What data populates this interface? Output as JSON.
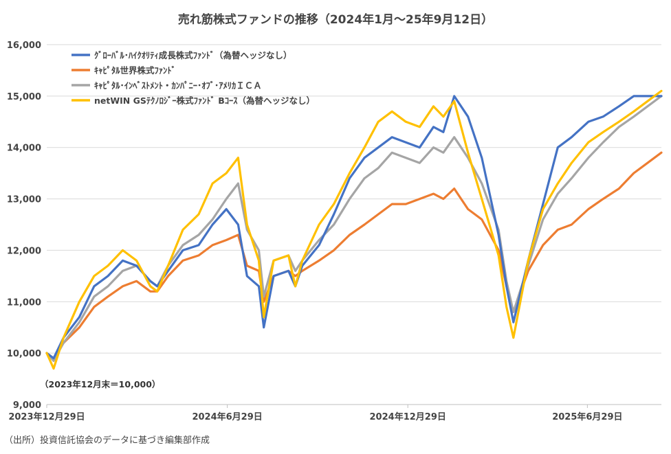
{
  "chart_data": {
    "type": "line",
    "title": "売れ筋株式ファンドの推移（2024年1月～25年9月12日）",
    "note": "（2023年12月末＝10,000）",
    "source": "（出所）投資信託協会のデータに基づき編集部作成",
    "ylim": [
      9000,
      16000
    ],
    "yticks": [
      {
        "value": 9000,
        "label": "9,000"
      },
      {
        "value": 10000,
        "label": "10,000"
      },
      {
        "value": 11000,
        "label": "11,000"
      },
      {
        "value": 12000,
        "label": "12,000"
      },
      {
        "value": 13000,
        "label": "13,000"
      },
      {
        "value": 14000,
        "label": "14,000"
      },
      {
        "value": 15000,
        "label": "15,000"
      },
      {
        "value": 16000,
        "label": "16,000"
      }
    ],
    "xlim": [
      "2023-12-29",
      "2025-09-12"
    ],
    "xticks": [
      {
        "value": "2023-12-29",
        "label": "2023年12月29日"
      },
      {
        "value": "2024-06-29",
        "label": "2024年6月29日"
      },
      {
        "value": "2024-12-29",
        "label": "2024年12月29日"
      },
      {
        "value": "2025-06-29",
        "label": "2025年6月29日"
      }
    ],
    "grid": true,
    "legend_position": "top-left",
    "series": [
      {
        "name": "ｸﾞﾛｰﾊﾞﾙ･ﾊｲｸｵﾘﾃｨ成長株式ﾌｧﾝﾄﾞ（為替ヘッジなし）",
        "color": "#4472C4",
        "x": [
          "2023-12-29",
          "2024-01-05",
          "2024-01-15",
          "2024-01-31",
          "2024-02-15",
          "2024-02-29",
          "2024-03-15",
          "2024-03-29",
          "2024-04-12",
          "2024-04-19",
          "2024-04-30",
          "2024-05-15",
          "2024-05-31",
          "2024-06-14",
          "2024-06-28",
          "2024-07-10",
          "2024-07-19",
          "2024-07-31",
          "2024-08-05",
          "2024-08-15",
          "2024-08-30",
          "2024-09-06",
          "2024-09-13",
          "2024-09-30",
          "2024-10-15",
          "2024-10-31",
          "2024-11-15",
          "2024-11-29",
          "2024-12-13",
          "2024-12-27",
          "2025-01-10",
          "2025-01-24",
          "2025-02-03",
          "2025-02-14",
          "2025-02-28",
          "2025-03-14",
          "2025-03-31",
          "2025-04-08",
          "2025-04-15",
          "2025-04-30",
          "2025-05-15",
          "2025-05-30",
          "2025-06-13",
          "2025-06-30",
          "2025-07-15",
          "2025-07-31",
          "2025-08-15",
          "2025-08-29",
          "2025-09-12"
        ],
        "values": [
          10000,
          9900,
          10300,
          10700,
          11300,
          11500,
          11800,
          11700,
          11400,
          11300,
          11600,
          12000,
          12100,
          12500,
          12800,
          12500,
          11500,
          11300,
          10500,
          11500,
          11600,
          11300,
          11700,
          12100,
          12700,
          13400,
          13800,
          14000,
          14200,
          14100,
          14000,
          14400,
          14300,
          15000,
          14600,
          13800,
          12300,
          11300,
          10600,
          11800,
          12900,
          14000,
          14200,
          14500,
          14600,
          14800,
          15000,
          15000,
          15000
        ]
      },
      {
        "name": "ｷｬﾋﾟﾀﾙ世界株式ﾌｧﾝﾄﾞ",
        "color": "#ED7D31",
        "x": [
          "2023-12-29",
          "2024-01-05",
          "2024-01-15",
          "2024-01-31",
          "2024-02-15",
          "2024-02-29",
          "2024-03-15",
          "2024-03-29",
          "2024-04-12",
          "2024-04-19",
          "2024-04-30",
          "2024-05-15",
          "2024-05-31",
          "2024-06-14",
          "2024-06-28",
          "2024-07-10",
          "2024-07-19",
          "2024-07-31",
          "2024-08-05",
          "2024-08-15",
          "2024-08-30",
          "2024-09-06",
          "2024-09-13",
          "2024-09-30",
          "2024-10-15",
          "2024-10-31",
          "2024-11-15",
          "2024-11-29",
          "2024-12-13",
          "2024-12-27",
          "2025-01-10",
          "2025-01-24",
          "2025-02-03",
          "2025-02-14",
          "2025-02-28",
          "2025-03-14",
          "2025-03-31",
          "2025-04-08",
          "2025-04-15",
          "2025-04-30",
          "2025-05-15",
          "2025-05-30",
          "2025-06-13",
          "2025-06-30",
          "2025-07-15",
          "2025-07-31",
          "2025-08-15",
          "2025-08-29",
          "2025-09-12"
        ],
        "values": [
          10000,
          9900,
          10200,
          10500,
          10900,
          11100,
          11300,
          11400,
          11200,
          11200,
          11500,
          11800,
          11900,
          12100,
          12200,
          12300,
          11700,
          11600,
          11000,
          11500,
          11600,
          11500,
          11600,
          11800,
          12000,
          12300,
          12500,
          12700,
          12900,
          12900,
          13000,
          13100,
          13000,
          13200,
          12800,
          12600,
          12000,
          11300,
          10800,
          11600,
          12100,
          12400,
          12500,
          12800,
          13000,
          13200,
          13500,
          13700,
          13900
        ]
      },
      {
        "name": "ｷｬﾋﾟﾀﾙ･ｲﾝﾍﾞｽﾄﾒﾝﾄ・ｶﾝﾊﾟﾆｰ･ｵﾌﾞ･ｱﾒﾘｶＩＣＡ",
        "color": "#A5A5A5",
        "x": [
          "2023-12-29",
          "2024-01-05",
          "2024-01-15",
          "2024-01-31",
          "2024-02-15",
          "2024-02-29",
          "2024-03-15",
          "2024-03-29",
          "2024-04-12",
          "2024-04-19",
          "2024-04-30",
          "2024-05-15",
          "2024-05-31",
          "2024-06-14",
          "2024-06-28",
          "2024-07-10",
          "2024-07-19",
          "2024-07-31",
          "2024-08-05",
          "2024-08-15",
          "2024-08-30",
          "2024-09-06",
          "2024-09-13",
          "2024-09-30",
          "2024-10-15",
          "2024-10-31",
          "2024-11-15",
          "2024-11-29",
          "2024-12-13",
          "2024-12-27",
          "2025-01-10",
          "2025-01-24",
          "2025-02-03",
          "2025-02-14",
          "2025-02-28",
          "2025-03-14",
          "2025-03-31",
          "2025-04-08",
          "2025-04-15",
          "2025-04-30",
          "2025-05-15",
          "2025-05-30",
          "2025-06-13",
          "2025-06-30",
          "2025-07-15",
          "2025-07-31",
          "2025-08-15",
          "2025-08-29",
          "2025-09-12"
        ],
        "values": [
          10000,
          9850,
          10200,
          10600,
          11100,
          11300,
          11600,
          11700,
          11400,
          11300,
          11700,
          12100,
          12300,
          12600,
          13000,
          13300,
          12400,
          12000,
          11100,
          11800,
          11900,
          11600,
          11800,
          12200,
          12500,
          13000,
          13400,
          13600,
          13900,
          13800,
          13700,
          14000,
          13900,
          14200,
          13800,
          13300,
          12400,
          11400,
          10800,
          11700,
          12600,
          13100,
          13400,
          13800,
          14100,
          14400,
          14600,
          14800,
          15000
        ]
      },
      {
        "name": "netWIN GSﾃｸﾉﾛｼﾞｰ株式ﾌｧﾝﾄﾞ Bｺｰｽ（為替ヘッジなし）",
        "color": "#FFC000",
        "x": [
          "2023-12-29",
          "2024-01-05",
          "2024-01-15",
          "2024-01-31",
          "2024-02-15",
          "2024-02-29",
          "2024-03-15",
          "2024-03-29",
          "2024-04-12",
          "2024-04-19",
          "2024-04-30",
          "2024-05-15",
          "2024-05-31",
          "2024-06-14",
          "2024-06-28",
          "2024-07-10",
          "2024-07-19",
          "2024-07-31",
          "2024-08-05",
          "2024-08-15",
          "2024-08-30",
          "2024-09-06",
          "2024-09-13",
          "2024-09-30",
          "2024-10-15",
          "2024-10-31",
          "2024-11-15",
          "2024-11-29",
          "2024-12-13",
          "2024-12-27",
          "2025-01-10",
          "2025-01-24",
          "2025-02-03",
          "2025-02-14",
          "2025-02-28",
          "2025-03-14",
          "2025-03-31",
          "2025-04-08",
          "2025-04-15",
          "2025-04-30",
          "2025-05-15",
          "2025-05-30",
          "2025-06-13",
          "2025-06-30",
          "2025-07-15",
          "2025-07-31",
          "2025-08-15",
          "2025-08-29",
          "2025-09-12"
        ],
        "values": [
          10000,
          9700,
          10300,
          11000,
          11500,
          11700,
          12000,
          11800,
          11300,
          11200,
          11700,
          12400,
          12700,
          13300,
          13500,
          13800,
          12500,
          11800,
          10700,
          11800,
          11900,
          11300,
          11800,
          12500,
          12900,
          13500,
          14000,
          14500,
          14700,
          14500,
          14400,
          14800,
          14600,
          14900,
          13900,
          13000,
          11900,
          10900,
          10300,
          11800,
          12800,
          13300,
          13700,
          14100,
          14300,
          14500,
          14700,
          14900,
          15100
        ]
      }
    ]
  }
}
